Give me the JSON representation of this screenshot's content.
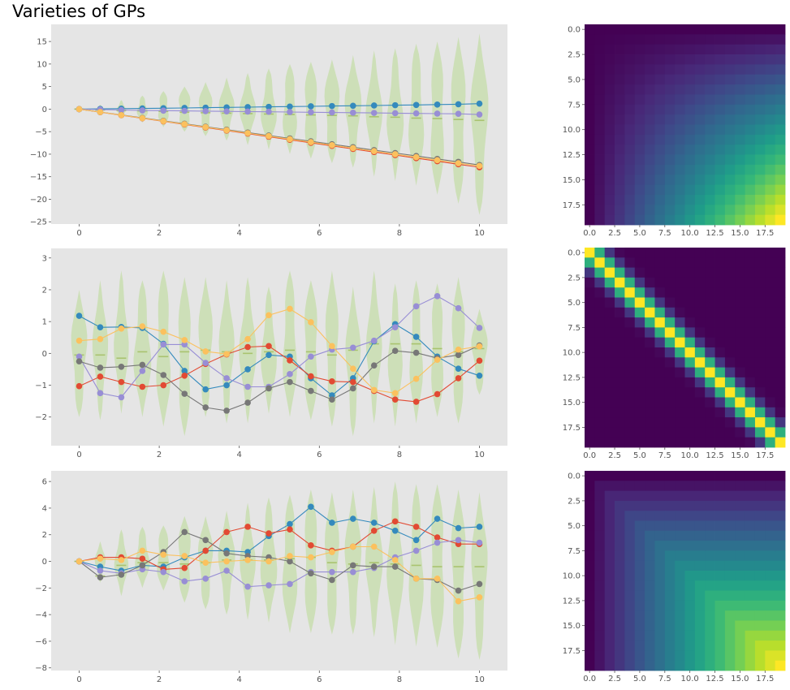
{
  "figure": {
    "title": "Varieties of GPs"
  },
  "colors": {
    "axes_bg": "#e5e5e5",
    "violin": "#cddfb8",
    "median": "#a9c36f",
    "series": [
      "#348abd",
      "#e24a33",
      "#988ed5",
      "#777777",
      "#fbc15e"
    ]
  },
  "chart_data": [
    {
      "type": "line",
      "style": "violin + line",
      "x": [
        0,
        0.526,
        1.053,
        1.579,
        2.105,
        2.632,
        3.158,
        3.684,
        4.211,
        4.737,
        5.263,
        5.789,
        6.316,
        6.842,
        7.368,
        7.895,
        8.421,
        8.947,
        9.474,
        10
      ],
      "xlim": [
        -0.7,
        10.7
      ],
      "ylim": [
        -25.5,
        18.8
      ],
      "xticks": [
        0,
        2,
        4,
        6,
        8,
        10
      ],
      "yticks": [
        -25,
        -20,
        -15,
        -10,
        -5,
        0,
        5,
        10,
        15
      ],
      "violin_halfwidth": [
        0.05,
        0.09,
        0.12,
        0.15,
        0.16,
        0.19,
        0.19,
        0.2,
        0.21,
        0.21,
        0.21,
        0.21,
        0.22,
        0.22,
        0.21,
        0.22,
        0.22,
        0.22,
        0.22,
        0.24
      ],
      "violin_low": [
        0,
        -1,
        -2,
        -3,
        -4,
        -5,
        -6,
        -7,
        -8,
        -9,
        -10,
        -11,
        -12,
        -13,
        -15,
        -16,
        -17,
        -19,
        -21,
        -23.5
      ],
      "violin_high": [
        0,
        1,
        2,
        3,
        4,
        5,
        6,
        7,
        8,
        9,
        10,
        10.5,
        11,
        12,
        13,
        13.5,
        14.5,
        15,
        16,
        16.8
      ],
      "medians": [
        0,
        -0.2,
        -0.3,
        -0.4,
        -0.5,
        -0.7,
        -0.8,
        -0.9,
        -1,
        -1.1,
        -1.2,
        -1.3,
        -1.4,
        -1.5,
        -1.7,
        -1.8,
        -2,
        -2.1,
        -2.3,
        -2.5
      ],
      "series": [
        {
          "values": [
            0,
            0.05,
            0.1,
            0.15,
            0.2,
            0.26,
            0.32,
            0.38,
            0.44,
            0.5,
            0.56,
            0.62,
            0.68,
            0.74,
            0.8,
            0.86,
            0.92,
            1,
            1.08,
            1.2
          ]
        },
        {
          "values": [
            0,
            -0.68,
            -1.36,
            -2.04,
            -2.72,
            -3.4,
            -4.08,
            -4.76,
            -5.44,
            -6.12,
            -6.8,
            -7.48,
            -8.16,
            -8.84,
            -9.52,
            -10.2,
            -10.88,
            -11.56,
            -12.24,
            -12.9
          ]
        },
        {
          "values": [
            0,
            -0.1,
            -0.2,
            -0.3,
            -0.35,
            -0.4,
            -0.45,
            -0.5,
            -0.55,
            -0.6,
            -0.65,
            -0.7,
            -0.75,
            -0.8,
            -0.85,
            -0.9,
            -0.95,
            -1,
            -1.05,
            -1.2
          ]
        },
        {
          "values": [
            0,
            -0.65,
            -1.3,
            -1.95,
            -2.6,
            -3.25,
            -3.9,
            -4.55,
            -5.2,
            -5.85,
            -6.5,
            -7.15,
            -7.8,
            -8.45,
            -9.1,
            -9.75,
            -10.4,
            -11.05,
            -11.7,
            -12.4
          ]
        },
        {
          "values": [
            0,
            -0.66,
            -1.33,
            -2,
            -2.66,
            -3.33,
            -4,
            -4.66,
            -5.33,
            -6,
            -6.66,
            -7.33,
            -8,
            -8.66,
            -9.33,
            -10,
            -10.66,
            -11.33,
            -12,
            -12.6
          ]
        }
      ]
    },
    {
      "type": "heatmap",
      "kernel": "linear",
      "size": 20,
      "colormap": "viridis",
      "ticks": [
        "0.0",
        "2.5",
        "5.0",
        "7.5",
        "10.0",
        "12.5",
        "15.0",
        "17.5"
      ],
      "tick_values": [
        0,
        2.5,
        5,
        7.5,
        10,
        12.5,
        15,
        17.5
      ]
    },
    {
      "type": "line",
      "style": "violin + line",
      "x": [
        0,
        0.526,
        1.053,
        1.579,
        2.105,
        2.632,
        3.158,
        3.684,
        4.211,
        4.737,
        5.263,
        5.789,
        6.316,
        6.842,
        7.368,
        7.895,
        8.421,
        8.947,
        9.474,
        10
      ],
      "xlim": [
        -0.7,
        10.7
      ],
      "ylim": [
        -2.9,
        3.3
      ],
      "xticks": [
        0,
        2,
        4,
        6,
        8,
        10
      ],
      "yticks": [
        -2,
        -1,
        0,
        1,
        2,
        3
      ],
      "violin_halfwidth": [
        0.22,
        0.2,
        0.19,
        0.24,
        0.22,
        0.2,
        0.2,
        0.2,
        0.22,
        0.21,
        0.21,
        0.22,
        0.19,
        0.2,
        0.2,
        0.19,
        0.19,
        0.2,
        0.2,
        0.22
      ],
      "violin_low": [
        -2,
        -2.1,
        -1.9,
        -2,
        -2.3,
        -2.6,
        -2,
        -2.2,
        -2.2,
        -1.9,
        -2,
        -2.1,
        -2.3,
        -2.6,
        -2.2,
        -2.3,
        -2.2,
        -2,
        -2.2,
        -1.3
      ],
      "violin_high": [
        2,
        2.3,
        2.6,
        2.3,
        2.6,
        2.4,
        2.4,
        2.3,
        2.4,
        2.1,
        2.6,
        2.3,
        2.6,
        2.1,
        2.6,
        2.2,
        2.3,
        2.2,
        2.4,
        1.4
      ],
      "medians": [
        -0.05,
        -0.05,
        -0.15,
        0.05,
        -0.1,
        0.05,
        0.1,
        0.05,
        0,
        0.05,
        0.1,
        0.05,
        -0.05,
        0.1,
        0.3,
        0.3,
        0.3,
        0.15,
        0.05,
        0.15
      ],
      "series": [
        {
          "values": [
            1.18,
            0.82,
            0.83,
            0.8,
            0.3,
            -0.55,
            -1.13,
            -1,
            -0.5,
            -0.05,
            -0.1,
            -0.78,
            -1.32,
            -0.78,
            0.38,
            0.92,
            0.52,
            -0.1,
            -0.48,
            -0.7
          ]
        },
        {
          "values": [
            -1.03,
            -0.73,
            -0.9,
            -1.05,
            -1.0,
            -0.7,
            -0.33,
            -0.03,
            0.2,
            0.23,
            -0.22,
            -0.72,
            -0.88,
            -0.9,
            -1.18,
            -1.45,
            -1.52,
            -1.28,
            -0.78,
            -0.23
          ]
        },
        {
          "values": [
            -0.1,
            -1.25,
            -1.38,
            -0.55,
            0.28,
            0.28,
            -0.3,
            -0.78,
            -1.05,
            -1.05,
            -0.65,
            -0.1,
            0.12,
            0.18,
            0.4,
            0.82,
            1.48,
            1.8,
            1.42,
            0.8
          ]
        },
        {
          "values": [
            -0.25,
            -0.45,
            -0.42,
            -0.36,
            -0.68,
            -1.27,
            -1.7,
            -1.8,
            -1.55,
            -1.1,
            -0.9,
            -1.18,
            -1.45,
            -1.1,
            -0.38,
            0.08,
            0.02,
            -0.15,
            -0.05,
            0.25
          ]
        },
        {
          "values": [
            0.4,
            0.45,
            0.78,
            0.85,
            0.68,
            0.42,
            0.06,
            -0.02,
            0.45,
            1.2,
            1.4,
            0.98,
            0.23,
            -0.48,
            -1.15,
            -1.25,
            -0.8,
            -0.2,
            0.12,
            0.22
          ]
        }
      ]
    },
    {
      "type": "heatmap",
      "kernel": "rbf",
      "size": 20,
      "colormap": "viridis",
      "ticks": [
        "0.0",
        "2.5",
        "5.0",
        "7.5",
        "10.0",
        "12.5",
        "15.0",
        "17.5"
      ],
      "tick_values": [
        0,
        2.5,
        5,
        7.5,
        10,
        12.5,
        15,
        17.5
      ]
    },
    {
      "type": "line",
      "style": "violin + line",
      "x": [
        0,
        0.526,
        1.053,
        1.579,
        2.105,
        2.632,
        3.158,
        3.684,
        4.211,
        4.737,
        5.263,
        5.789,
        6.316,
        6.842,
        7.368,
        7.895,
        8.421,
        8.947,
        9.474,
        10
      ],
      "xlim": [
        -0.7,
        10.7
      ],
      "ylim": [
        -8.2,
        6.8
      ],
      "xticks": [
        0,
        2,
        4,
        6,
        8,
        10
      ],
      "yticks": [
        -8,
        -6,
        -4,
        -2,
        0,
        2,
        4,
        6
      ],
      "violin_halfwidth": [
        0.04,
        0.14,
        0.18,
        0.2,
        0.2,
        0.2,
        0.21,
        0.22,
        0.2,
        0.22,
        0.22,
        0.21,
        0.21,
        0.22,
        0.22,
        0.22,
        0.21,
        0.22,
        0.22,
        0.22
      ],
      "violin_low": [
        0,
        -1.6,
        -2.6,
        -2,
        -2.2,
        -3.1,
        -3.6,
        -4,
        -4.4,
        -4.6,
        -5.4,
        -5.4,
        -5.5,
        -5.5,
        -5.7,
        -6.3,
        -6.4,
        -6.5,
        -7.3,
        -7.4
      ],
      "violin_high": [
        0,
        1.5,
        2.4,
        2.6,
        2.7,
        3.4,
        3.4,
        3.8,
        4.4,
        4.8,
        5,
        5.4,
        5.2,
        5.4,
        5.6,
        6,
        5.8,
        5.8,
        5.4,
        5.2
      ],
      "medians": [
        0,
        -1.1,
        -0.3,
        -0.1,
        -0.1,
        -0.2,
        -0.1,
        0.1,
        0.1,
        0.1,
        0.2,
        0.3,
        -0.1,
        -0.2,
        -0.1,
        -0.2,
        -0.3,
        -0.4,
        -0.4,
        -0.4
      ],
      "series": [
        {
          "values": [
            0,
            -0.4,
            -0.7,
            -0.3,
            -0.4,
            0.3,
            0.8,
            0.8,
            0.7,
            1.9,
            2.8,
            4.1,
            2.9,
            3.2,
            2.9,
            2.3,
            1.6,
            3.2,
            2.5,
            2.6
          ]
        },
        {
          "values": [
            0,
            0.3,
            0.3,
            0.2,
            -0.6,
            -0.5,
            0.8,
            2.2,
            2.6,
            2.1,
            2.4,
            1.2,
            0.8,
            1.1,
            2.3,
            3.0,
            2.6,
            1.8,
            1.3,
            1.3
          ]
        },
        {
          "values": [
            0,
            -0.7,
            -0.9,
            -0.6,
            -0.8,
            -1.5,
            -1.3,
            -0.7,
            -1.9,
            -1.8,
            -1.7,
            -0.8,
            -0.8,
            -0.8,
            -0.5,
            0.3,
            0.8,
            1.4,
            1.6,
            1.4
          ]
        },
        {
          "values": [
            0,
            -1.2,
            -1.0,
            -0.3,
            0.7,
            2.2,
            1.6,
            0.6,
            0.4,
            0.3,
            0,
            -0.9,
            -1.4,
            -0.3,
            -0.4,
            -0.4,
            -1.3,
            -1.4,
            -2.2,
            -1.7
          ]
        },
        {
          "values": [
            0,
            0.2,
            0.1,
            0.8,
            0.5,
            0.4,
            -0.1,
            0,
            0.1,
            0,
            0.4,
            0.3,
            0.7,
            1.1,
            1.1,
            0.1,
            -1.3,
            -1.3,
            -3.0,
            -2.7
          ]
        }
      ]
    },
    {
      "type": "heatmap",
      "kernel": "brownian",
      "size": 20,
      "colormap": "viridis",
      "ticks": [
        "0.0",
        "2.5",
        "5.0",
        "7.5",
        "10.0",
        "12.5",
        "15.0",
        "17.5"
      ],
      "tick_values": [
        0,
        2.5,
        5,
        7.5,
        10,
        12.5,
        15,
        17.5
      ]
    }
  ]
}
